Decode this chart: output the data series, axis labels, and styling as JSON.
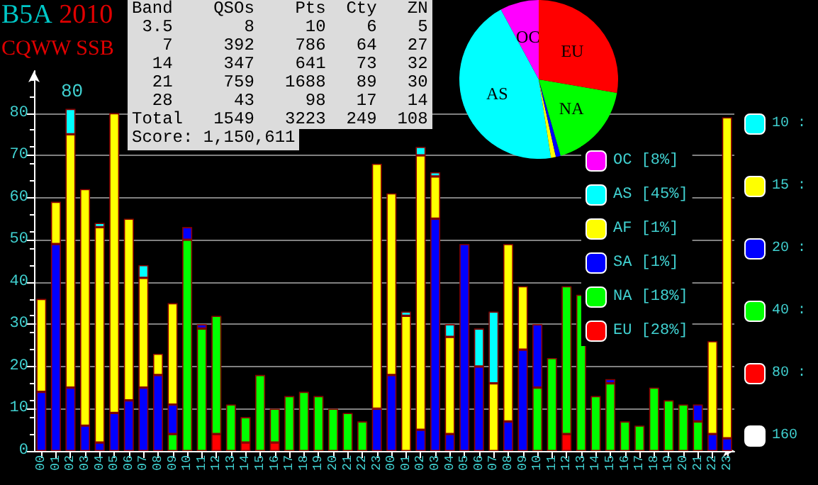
{
  "chart_data": [
    {
      "type": "other",
      "annotations": [
        "Band    QSOs    Pts  Cty   ZN",
        " 3.5       8     10    6    5",
        "   7     392    786   64   27",
        "  14     347    641   73   32",
        "  21     759   1688   89   30",
        "  28      43     98   17   14",
        "Total   1549   3223  249  108",
        "Score: 1,150,611"
      ]
    },
    {
      "type": "bar",
      "title": "B5A 2010",
      "subtitle": "CQWW SSB",
      "annotations": [
        "80"
      ],
      "categories": [
        "00",
        "01",
        "02",
        "03",
        "04",
        "05",
        "06",
        "07",
        "08",
        "09",
        "10",
        "11",
        "12",
        "13",
        "14",
        "15",
        "16",
        "17",
        "18",
        "19",
        "20",
        "21",
        "22",
        "23",
        "00",
        "01",
        "02",
        "03",
        "04",
        "05",
        "06",
        "07",
        "08",
        "09",
        "10",
        "11",
        "12",
        "13",
        "14",
        "15",
        "16",
        "17",
        "18",
        "19",
        "20",
        "21",
        "22",
        "23"
      ],
      "stacked": true,
      "ylim": [
        0,
        90
      ],
      "yticks": [
        0,
        10,
        20,
        30,
        40,
        50,
        60,
        70,
        80
      ],
      "grid": "y",
      "legend": "right",
      "series": [
        {
          "name": "160",
          "color": "#ffffff",
          "values": [
            null,
            null,
            null,
            null,
            null,
            null,
            null,
            null,
            null,
            null,
            null,
            null,
            null,
            null,
            null,
            null,
            null,
            null,
            null,
            null,
            null,
            null,
            null,
            null,
            null,
            null,
            null,
            null,
            null,
            null,
            null,
            null,
            null,
            null,
            null,
            null,
            null,
            null,
            null,
            null,
            null,
            null,
            null,
            null,
            null,
            null,
            null,
            null
          ]
        },
        {
          "name": "80 :",
          "color": "#ff0000",
          "values": [
            null,
            null,
            null,
            null,
            null,
            null,
            null,
            null,
            null,
            null,
            null,
            null,
            4,
            null,
            2,
            null,
            2,
            null,
            null,
            null,
            null,
            null,
            null,
            null,
            null,
            null,
            null,
            null,
            null,
            null,
            null,
            null,
            null,
            null,
            null,
            null,
            4,
            null,
            null,
            null,
            null,
            null,
            null,
            null,
            null,
            null,
            null,
            null
          ]
        },
        {
          "name": "40 :",
          "color": "#00ff00",
          "values": [
            null,
            null,
            null,
            null,
            null,
            null,
            null,
            null,
            null,
            4,
            50,
            29,
            28,
            11,
            6,
            18,
            8,
            13,
            14,
            13,
            10,
            9,
            7,
            null,
            null,
            null,
            null,
            null,
            null,
            null,
            null,
            null,
            null,
            null,
            15,
            22,
            35,
            37,
            13,
            16,
            7,
            6,
            15,
            12,
            11,
            7,
            null,
            null
          ]
        },
        {
          "name": "20 :",
          "color": "#0000ff",
          "values": [
            14,
            49,
            15,
            6,
            2,
            9,
            12,
            15,
            18,
            7,
            3,
            1,
            null,
            null,
            null,
            null,
            null,
            null,
            null,
            null,
            null,
            null,
            null,
            10,
            18,
            null,
            5,
            55,
            4,
            49,
            20,
            null,
            7,
            24,
            15,
            null,
            null,
            null,
            null,
            1,
            null,
            null,
            null,
            null,
            null,
            4,
            4,
            3
          ]
        },
        {
          "name": "15 :",
          "color": "#ffff00",
          "values": [
            22,
            10,
            60,
            56,
            51,
            71,
            43,
            26,
            5,
            24,
            null,
            null,
            null,
            null,
            null,
            null,
            null,
            null,
            null,
            null,
            null,
            null,
            null,
            58,
            43,
            32,
            65,
            10,
            23,
            null,
            null,
            16,
            42,
            15,
            null,
            null,
            null,
            null,
            null,
            null,
            null,
            null,
            null,
            null,
            null,
            null,
            22,
            76
          ]
        },
        {
          "name": "10 :",
          "color": "#00ffff",
          "values": [
            null,
            null,
            6,
            null,
            1,
            null,
            null,
            3,
            null,
            null,
            null,
            null,
            null,
            null,
            null,
            null,
            null,
            null,
            null,
            null,
            null,
            null,
            null,
            null,
            null,
            1,
            2,
            1,
            3,
            null,
            9,
            17,
            null,
            null,
            null,
            null,
            null,
            null,
            null,
            null,
            null,
            null,
            null,
            null,
            null,
            null,
            null,
            null
          ]
        }
      ]
    },
    {
      "type": "pie",
      "categories": [
        "OC",
        "AS",
        "AF",
        "SA",
        "NA",
        "EU"
      ],
      "values": [
        8,
        45,
        1,
        1,
        18,
        28
      ],
      "colors": [
        "#ff00ff",
        "#00ffff",
        "#ffff00",
        "#0000ff",
        "#00ff00",
        "#ff0000"
      ],
      "value_labels": [
        "[8%]",
        "[45%]",
        "[1%]",
        "[1%]",
        "[18%]",
        "[28%]"
      ],
      "legend": "bottom right"
    }
  ]
}
